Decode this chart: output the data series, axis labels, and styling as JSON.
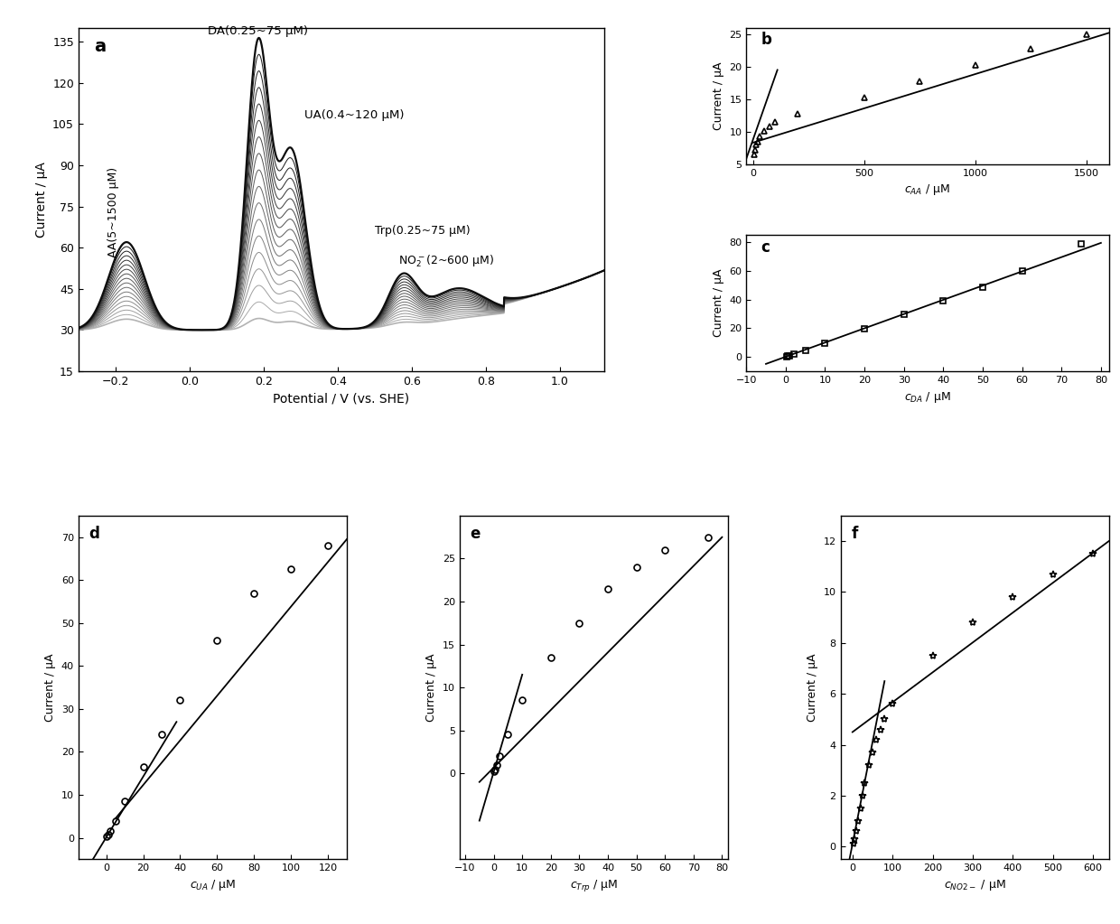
{
  "panel_a": {
    "xlabel": "Potential / V (vs. SHE)",
    "ylabel": "Current / μA",
    "label": "a",
    "x_range": [
      -0.3,
      1.12
    ],
    "y_range": [
      15,
      140
    ],
    "yticks": [
      15,
      30,
      45,
      60,
      75,
      90,
      105,
      120,
      135
    ],
    "xticks": [
      -0.2,
      0.0,
      0.2,
      0.4,
      0.6,
      0.8,
      1.0
    ],
    "n_curves": 18
  },
  "panel_b": {
    "xlabel": "$c_{AA}$ / μM",
    "ylabel": "Current / μA",
    "label": "b",
    "x_range": [
      -30,
      1600
    ],
    "y_range": [
      5,
      26
    ],
    "yticks": [
      5,
      10,
      15,
      20,
      25
    ],
    "xticks": [
      0,
      500,
      1000,
      1500
    ],
    "data_x": [
      5,
      10,
      15,
      20,
      30,
      50,
      75,
      100,
      200,
      500,
      750,
      1000,
      1250,
      1500
    ],
    "data_y": [
      6.5,
      7.2,
      8.0,
      8.5,
      9.2,
      10.1,
      10.8,
      11.5,
      12.8,
      15.2,
      17.8,
      20.2,
      22.8,
      25.0
    ],
    "line1_x": [
      -30,
      110
    ],
    "line1_y": [
      5.8,
      19.5
    ],
    "line2_x": [
      0,
      1600
    ],
    "line2_y": [
      8.3,
      25.2
    ],
    "marker": "^"
  },
  "panel_c": {
    "xlabel": "$c_{DA}$ / μM",
    "ylabel": "Current / μA",
    "label": "c",
    "x_range": [
      -10,
      82
    ],
    "y_range": [
      -10,
      85
    ],
    "yticks": [
      0,
      20,
      40,
      60,
      80
    ],
    "xticks": [
      -10,
      0,
      10,
      20,
      30,
      40,
      50,
      60,
      70,
      80
    ],
    "data_x": [
      0.25,
      0.5,
      1,
      2,
      5,
      10,
      20,
      30,
      40,
      50,
      60,
      75
    ],
    "data_y": [
      0.2,
      0.5,
      1.0,
      2.0,
      4.8,
      9.8,
      19.5,
      29.5,
      39.2,
      48.8,
      60.0,
      79.0
    ],
    "line_x": [
      -5,
      80
    ],
    "line_y": [
      -4.8,
      79.5
    ],
    "marker": "s"
  },
  "panel_d": {
    "xlabel": "$c_{UA}$ / μM",
    "ylabel": "Current / μA",
    "label": "d",
    "x_range": [
      -15,
      130
    ],
    "y_range": [
      -5,
      75
    ],
    "yticks": [
      0,
      10,
      20,
      30,
      40,
      50,
      60,
      70
    ],
    "xticks": [
      0,
      20,
      40,
      60,
      80,
      100,
      120
    ],
    "data_x": [
      0.4,
      1,
      2,
      5,
      10,
      20,
      30,
      40,
      60,
      80,
      100,
      120
    ],
    "data_y": [
      0.3,
      0.8,
      1.5,
      4.0,
      8.5,
      16.5,
      24.0,
      32.0,
      46.0,
      57.0,
      62.5,
      68.0
    ],
    "line1_x": [
      -10,
      38
    ],
    "line1_y": [
      -7.0,
      27.0
    ],
    "line2_x": [
      5,
      130
    ],
    "line2_y": [
      4.5,
      69.5
    ],
    "marker": "o"
  },
  "panel_e": {
    "xlabel": "$c_{Trp}$ / μM",
    "ylabel": "Current / μA",
    "label": "e",
    "x_range": [
      -12,
      82
    ],
    "y_range": [
      -10,
      30
    ],
    "yticks": [
      0,
      5,
      10,
      15,
      20,
      25
    ],
    "xticks": [
      -10,
      0,
      10,
      20,
      30,
      40,
      50,
      60,
      70,
      80
    ],
    "data_x": [
      0.25,
      0.5,
      1,
      2,
      5,
      10,
      20,
      30,
      40,
      50,
      60,
      75
    ],
    "data_y": [
      0.2,
      0.5,
      1.0,
      2.0,
      4.5,
      8.5,
      13.5,
      17.5,
      21.5,
      24.0,
      26.0,
      27.5
    ],
    "line1_x": [
      -5,
      10
    ],
    "line1_y": [
      -5.5,
      11.5
    ],
    "line2_x": [
      -5,
      80
    ],
    "line2_y": [
      -1.0,
      27.5
    ],
    "marker": "o"
  },
  "panel_f": {
    "xlabel": "$c_{NO2-}$ / μM",
    "ylabel": "Current / μA",
    "label": "f",
    "x_range": [
      -30,
      640
    ],
    "y_range": [
      -0.5,
      13
    ],
    "yticks": [
      0,
      2,
      4,
      6,
      8,
      10,
      12
    ],
    "xticks": [
      0,
      100,
      200,
      300,
      400,
      500,
      600
    ],
    "data_x": [
      2,
      5,
      10,
      15,
      20,
      25,
      30,
      40,
      50,
      60,
      70,
      80,
      100,
      200,
      300,
      400,
      500,
      600
    ],
    "data_y": [
      0.1,
      0.3,
      0.6,
      1.0,
      1.5,
      2.0,
      2.5,
      3.2,
      3.7,
      4.2,
      4.6,
      5.0,
      5.6,
      7.5,
      8.8,
      9.8,
      10.7,
      11.5
    ],
    "line1_x": [
      -20,
      80
    ],
    "line1_y": [
      -1.5,
      6.5
    ],
    "line2_x": [
      0,
      640
    ],
    "line2_y": [
      4.5,
      12.0
    ],
    "marker": "*"
  }
}
